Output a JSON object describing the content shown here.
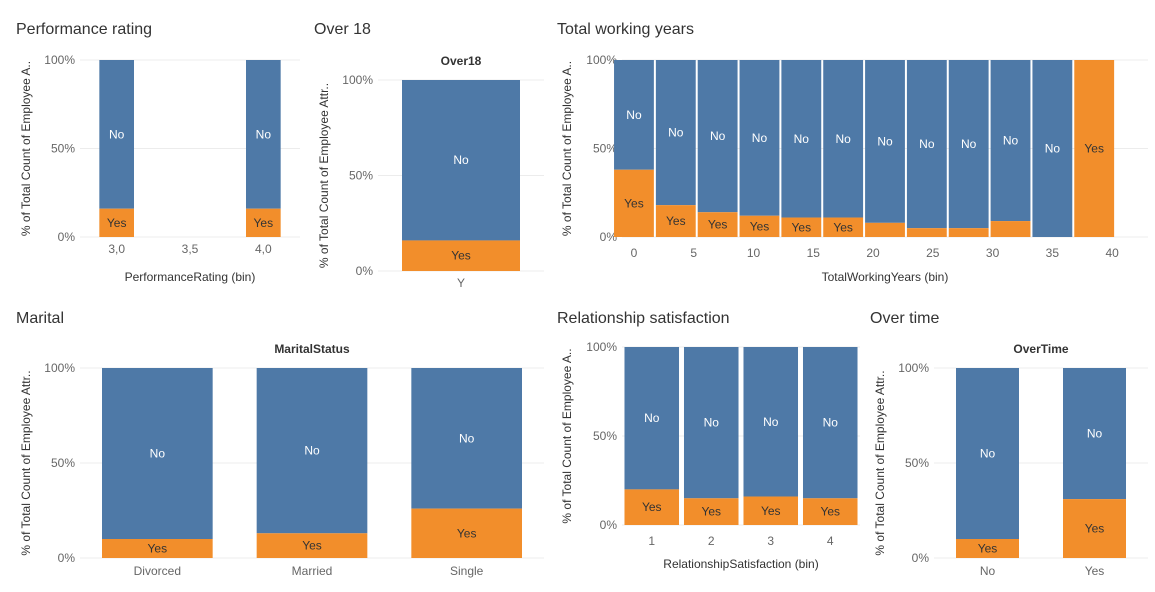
{
  "colors": {
    "no": "#4e79a7",
    "yes": "#f28e2b",
    "grid": "#ececec",
    "label_no": "#ffffff",
    "label_yes": "#333333"
  },
  "chart_data": [
    {
      "id": "performance",
      "type": "bar",
      "title": "Performance rating",
      "header": "",
      "xlabel": "PerformanceRating (bin)",
      "ylabel": "% of Total Count of Employee A..",
      "ylim": [
        0,
        100
      ],
      "yticks": [
        "0%",
        "50%",
        "100%"
      ],
      "xticks": [
        "3,0",
        "3,5",
        "4,0"
      ],
      "bars": [
        {
          "x": 3.0,
          "yes": 16,
          "label_no": "No",
          "label_yes": "Yes"
        },
        {
          "x": 4.0,
          "yes": 16,
          "label_no": "No",
          "label_yes": "Yes"
        }
      ]
    },
    {
      "id": "over18",
      "type": "bar",
      "title": "Over 18",
      "header": "Over18",
      "xlabel": "",
      "ylabel": "% of Total Count of Employee Attr..",
      "ylim": [
        0,
        100
      ],
      "yticks": [
        "0%",
        "50%",
        "100%"
      ],
      "categories": [
        "Y"
      ],
      "bars": [
        {
          "category": "Y",
          "yes": 16,
          "label_no": "No",
          "label_yes": "Yes"
        }
      ]
    },
    {
      "id": "working_years",
      "type": "bar",
      "title": "Total working years",
      "header": "",
      "xlabel": "TotalWorkingYears (bin)",
      "ylabel": "% of Total Count of Employee A..",
      "ylim": [
        0,
        100
      ],
      "yticks": [
        "0%",
        "50%",
        "100%"
      ],
      "xticks": [
        "0",
        "5",
        "10",
        "15",
        "20",
        "25",
        "30",
        "35",
        "40"
      ],
      "bars": [
        {
          "x": 0,
          "yes": 38,
          "label_no": "No",
          "label_yes": "Yes"
        },
        {
          "x": 3.5,
          "yes": 18,
          "label_no": "No",
          "label_yes": "Yes"
        },
        {
          "x": 7,
          "yes": 14,
          "label_no": "No",
          "label_yes": "Yes"
        },
        {
          "x": 10.5,
          "yes": 12,
          "label_no": "No",
          "label_yes": "Yes"
        },
        {
          "x": 14,
          "yes": 11,
          "label_no": "No",
          "label_yes": "Yes"
        },
        {
          "x": 17.5,
          "yes": 11,
          "label_no": "No",
          "label_yes": "Yes"
        },
        {
          "x": 21,
          "yes": 8,
          "label_no": "No",
          "label_yes": ""
        },
        {
          "x": 24.5,
          "yes": 5,
          "label_no": "No",
          "label_yes": ""
        },
        {
          "x": 28,
          "yes": 5,
          "label_no": "No",
          "label_yes": ""
        },
        {
          "x": 31.5,
          "yes": 9,
          "label_no": "No",
          "label_yes": ""
        },
        {
          "x": 35,
          "yes": 0,
          "label_no": "No",
          "label_yes": ""
        },
        {
          "x": 38.5,
          "yes": 100,
          "label_no": "",
          "label_yes": "Yes"
        }
      ]
    },
    {
      "id": "marital",
      "type": "bar",
      "title": "Marital",
      "header": "MaritalStatus",
      "xlabel": "",
      "ylabel": "% of Total Count of Employee Attr..",
      "ylim": [
        0,
        100
      ],
      "yticks": [
        "0%",
        "50%",
        "100%"
      ],
      "categories": [
        "Divorced",
        "Married",
        "Single"
      ],
      "bars": [
        {
          "category": "Divorced",
          "yes": 10,
          "label_no": "No",
          "label_yes": "Yes"
        },
        {
          "category": "Married",
          "yes": 13,
          "label_no": "No",
          "label_yes": "Yes"
        },
        {
          "category": "Single",
          "yes": 26,
          "label_no": "No",
          "label_yes": "Yes"
        }
      ]
    },
    {
      "id": "relationship",
      "type": "bar",
      "title": "Relationship satisfaction",
      "header": "",
      "xlabel": "RelationshipSatisfaction (bin)",
      "ylabel": "% of Total Count of Employee A..",
      "ylim": [
        0,
        100
      ],
      "yticks": [
        "0%",
        "50%",
        "100%"
      ],
      "xticks": [
        "1",
        "2",
        "3",
        "4"
      ],
      "bars": [
        {
          "x": 1,
          "yes": 20,
          "label_no": "No",
          "label_yes": "Yes"
        },
        {
          "x": 2,
          "yes": 15,
          "label_no": "No",
          "label_yes": "Yes"
        },
        {
          "x": 3,
          "yes": 16,
          "label_no": "No",
          "label_yes": "Yes"
        },
        {
          "x": 4,
          "yes": 15,
          "label_no": "No",
          "label_yes": "Yes"
        }
      ]
    },
    {
      "id": "overtime",
      "type": "bar",
      "title": "Over time",
      "header": "OverTime",
      "xlabel": "",
      "ylabel": "% of Total Count of Employee Attr..",
      "ylim": [
        0,
        100
      ],
      "yticks": [
        "0%",
        "50%",
        "100%"
      ],
      "categories": [
        "No",
        "Yes"
      ],
      "bars": [
        {
          "category": "No",
          "yes": 10,
          "label_no": "No",
          "label_yes": "Yes"
        },
        {
          "category": "Yes",
          "yes": 31,
          "label_no": "No",
          "label_yes": "Yes"
        }
      ]
    }
  ]
}
